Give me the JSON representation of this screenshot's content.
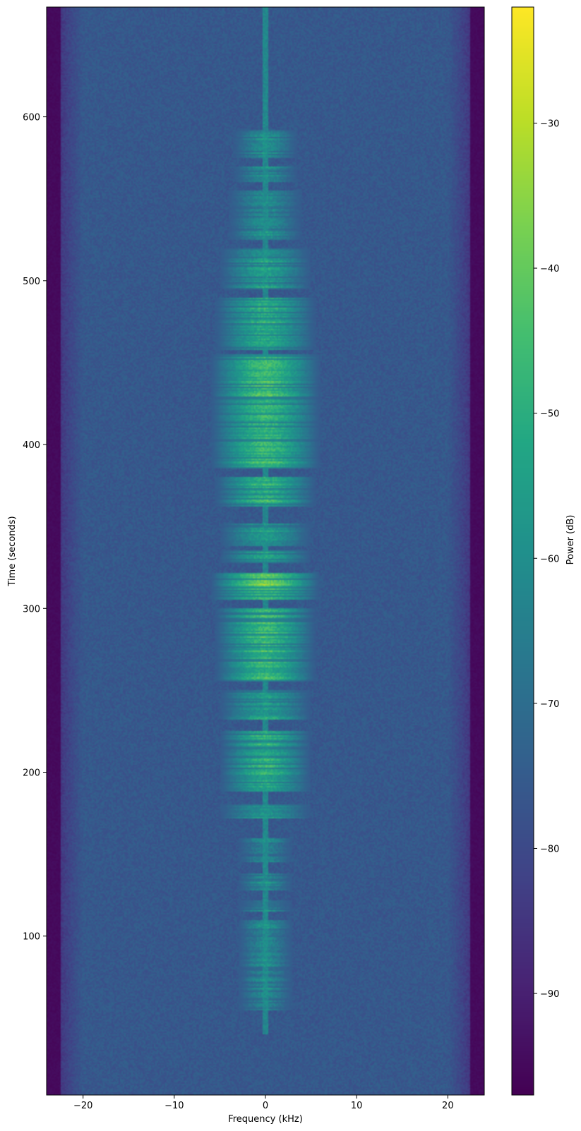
{
  "chart_data": {
    "type": "heatmap",
    "xlabel": "Frequency (kHz)",
    "ylabel": "Time (seconds)",
    "colorbar_label": "Power (dB)",
    "colormap": "viridis",
    "xlim": [
      -24,
      24
    ],
    "ylim": [
      3,
      667
    ],
    "clim": [
      -97,
      -22
    ],
    "x_ticks": [
      -20,
      -10,
      0,
      10,
      20
    ],
    "x_tick_labels": [
      "−20",
      "−10",
      "0",
      "10",
      "20"
    ],
    "y_ticks": [
      100,
      200,
      300,
      400,
      500,
      600
    ],
    "y_tick_labels": [
      "100",
      "200",
      "300",
      "400",
      "500",
      "600"
    ],
    "colorbar_ticks": [
      -30,
      -40,
      -50,
      -60,
      -70,
      -80,
      -90
    ],
    "colorbar_tick_labels": [
      "−30",
      "−40",
      "−50",
      "−60",
      "−70",
      "−80",
      "−90"
    ],
    "background_level_db": -76,
    "edge_level_db": -95,
    "carrier_frequency_khz": 0,
    "signal_bursts": [
      {
        "t_start": 55,
        "t_end": 110,
        "level_db": -62,
        "half_width_khz": 3
      },
      {
        "t_start": 115,
        "t_end": 122,
        "level_db": -60,
        "half_width_khz": 3
      },
      {
        "t_start": 128,
        "t_end": 138,
        "level_db": -60,
        "half_width_khz": 3
      },
      {
        "t_start": 145,
        "t_end": 160,
        "level_db": -64,
        "half_width_khz": 3
      },
      {
        "t_start": 172,
        "t_end": 180,
        "level_db": -58,
        "half_width_khz": 5
      },
      {
        "t_start": 188,
        "t_end": 225,
        "level_db": -50,
        "half_width_khz": 5
      },
      {
        "t_start": 232,
        "t_end": 250,
        "level_db": -54,
        "half_width_khz": 5
      },
      {
        "t_start": 255,
        "t_end": 300,
        "level_db": -46,
        "half_width_khz": 5.5
      },
      {
        "t_start": 305,
        "t_end": 322,
        "level_db": -38,
        "half_width_khz": 6
      },
      {
        "t_start": 328,
        "t_end": 335,
        "level_db": -52,
        "half_width_khz": 5
      },
      {
        "t_start": 338,
        "t_end": 352,
        "level_db": -56,
        "half_width_khz": 5
      },
      {
        "t_start": 362,
        "t_end": 380,
        "level_db": -48,
        "half_width_khz": 5.5
      },
      {
        "t_start": 385,
        "t_end": 455,
        "level_db": -45,
        "half_width_khz": 6
      },
      {
        "t_start": 458,
        "t_end": 490,
        "level_db": -50,
        "half_width_khz": 5.5
      },
      {
        "t_start": 495,
        "t_end": 520,
        "level_db": -55,
        "half_width_khz": 5
      },
      {
        "t_start": 525,
        "t_end": 555,
        "level_db": -60,
        "half_width_khz": 4
      },
      {
        "t_start": 560,
        "t_end": 570,
        "level_db": -60,
        "half_width_khz": 3.5
      },
      {
        "t_start": 575,
        "t_end": 592,
        "level_db": -60,
        "half_width_khz": 3.5
      }
    ]
  }
}
